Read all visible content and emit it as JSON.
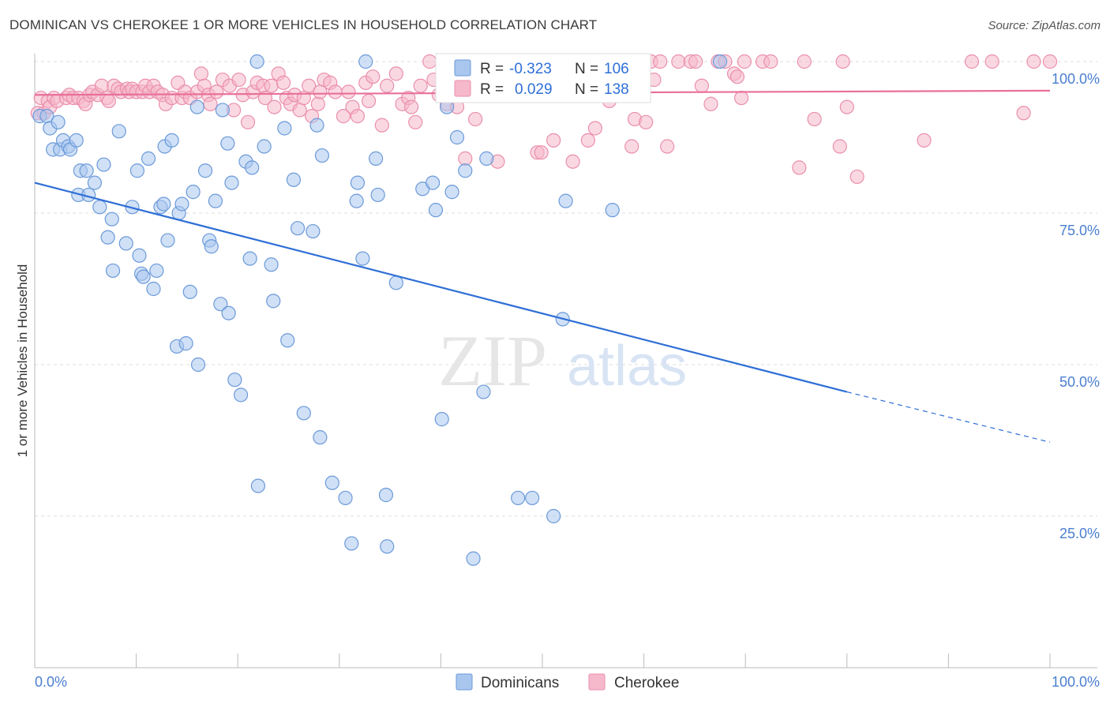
{
  "title": "DOMINICAN VS CHEROKEE 1 OR MORE VEHICLES IN HOUSEHOLD CORRELATION CHART",
  "source": "Source: ZipAtlas.com",
  "watermark": {
    "zip": "ZIP",
    "atlas": "atlas"
  },
  "colors": {
    "dominican_fill": "#a9c6ee",
    "dominican_stroke": "#6b9ad9",
    "dominican_line": "#2f6fd6",
    "cherokee_fill": "#f6b8cb",
    "cherokee_stroke": "#ea8fac",
    "cherokee_line": "#e8709a",
    "tick_text": "#4a7fd0",
    "grid": "#dddddd"
  },
  "legend": {
    "r_label": "R =",
    "n_label": "N =",
    "rows": [
      {
        "r": "-0.323",
        "n": "106"
      },
      {
        "r": "0.029",
        "n": "138"
      }
    ]
  },
  "bottom_legend": [
    "Dominicans",
    "Cherokee"
  ],
  "chart_data": {
    "type": "scatter",
    "title": "DOMINICAN VS CHEROKEE 1 OR MORE VEHICLES IN HOUSEHOLD CORRELATION CHART",
    "xlabel": "",
    "ylabel": "1 or more Vehicles in Household",
    "xlim": [
      0,
      100
    ],
    "ylim": [
      0,
      100
    ],
    "x_tick_labels": [
      "0.0%",
      "100.0%"
    ],
    "y_ticks": [
      {
        "value": 25,
        "label": "25.0%"
      },
      {
        "value": 50,
        "label": "50.0%"
      },
      {
        "value": 75,
        "label": "75.0%"
      },
      {
        "value": 100,
        "label": "100.0%"
      }
    ],
    "grid": true,
    "legend_position": "top-center",
    "series": [
      {
        "name": "Dominicans",
        "trend": {
          "x0": 0,
          "y0": 80.0,
          "x1": 80,
          "y1": 45.5,
          "dashed_to_x": 100,
          "dashed_to_y": 37.2
        },
        "points": [
          [
            0.5,
            91
          ],
          [
            1.2,
            91
          ],
          [
            1.5,
            89
          ],
          [
            1.8,
            85.5
          ],
          [
            2.3,
            90
          ],
          [
            2.5,
            85.5
          ],
          [
            2.8,
            87
          ],
          [
            3.3,
            86
          ],
          [
            3.5,
            85.5
          ],
          [
            4.1,
            87
          ],
          [
            4.3,
            78
          ],
          [
            4.5,
            82
          ],
          [
            5.1,
            82
          ],
          [
            5.3,
            78
          ],
          [
            5.9,
            80
          ],
          [
            6.4,
            76
          ],
          [
            6.8,
            83
          ],
          [
            7.2,
            71
          ],
          [
            7.6,
            74
          ],
          [
            7.7,
            65.5
          ],
          [
            8.3,
            88.5
          ],
          [
            9.0,
            70
          ],
          [
            9.6,
            76
          ],
          [
            10.1,
            82
          ],
          [
            10.3,
            68
          ],
          [
            10.5,
            65
          ],
          [
            10.7,
            64.5
          ],
          [
            11.2,
            84
          ],
          [
            11.7,
            62.5
          ],
          [
            12.0,
            65.5
          ],
          [
            12.4,
            76
          ],
          [
            12.7,
            76.5
          ],
          [
            12.8,
            86
          ],
          [
            13.1,
            70.5
          ],
          [
            13.5,
            87
          ],
          [
            14.0,
            53
          ],
          [
            14.2,
            75
          ],
          [
            14.5,
            76.5
          ],
          [
            14.9,
            53.5
          ],
          [
            15.3,
            62
          ],
          [
            15.6,
            78.5
          ],
          [
            16.0,
            92.5
          ],
          [
            16.1,
            50
          ],
          [
            16.8,
            82
          ],
          [
            17.2,
            70.5
          ],
          [
            17.4,
            69.5
          ],
          [
            17.8,
            77
          ],
          [
            18.3,
            60
          ],
          [
            18.5,
            92
          ],
          [
            19.0,
            86.5
          ],
          [
            19.1,
            58.5
          ],
          [
            19.4,
            80
          ],
          [
            19.7,
            47.5
          ],
          [
            20.3,
            45
          ],
          [
            20.8,
            83.5
          ],
          [
            21.2,
            67.5
          ],
          [
            21.4,
            82.5
          ],
          [
            21.9,
            100
          ],
          [
            22.0,
            30
          ],
          [
            22.6,
            86
          ],
          [
            23.3,
            66.5
          ],
          [
            23.5,
            60.5
          ],
          [
            24.6,
            89
          ],
          [
            24.9,
            54
          ],
          [
            25.5,
            80.5
          ],
          [
            25.9,
            72.5
          ],
          [
            26.5,
            42
          ],
          [
            27.4,
            72
          ],
          [
            27.8,
            89.5
          ],
          [
            28.1,
            38
          ],
          [
            28.3,
            84.5
          ],
          [
            29.3,
            30.5
          ],
          [
            30.6,
            28
          ],
          [
            31.2,
            20.5
          ],
          [
            31.7,
            77
          ],
          [
            31.8,
            80
          ],
          [
            32.3,
            67.5
          ],
          [
            32.6,
            100
          ],
          [
            33.6,
            84
          ],
          [
            33.8,
            78
          ],
          [
            34.6,
            28.5
          ],
          [
            34.7,
            20
          ],
          [
            35.6,
            63.5
          ],
          [
            38.2,
            79
          ],
          [
            39.2,
            80
          ],
          [
            39.5,
            75.5
          ],
          [
            40.1,
            41
          ],
          [
            40.6,
            92.5
          ],
          [
            41.1,
            78.5
          ],
          [
            41.6,
            87.5
          ],
          [
            42.4,
            82
          ],
          [
            43.2,
            18
          ],
          [
            44.2,
            45.5
          ],
          [
            44.5,
            84
          ],
          [
            47.6,
            28
          ],
          [
            49.0,
            28
          ],
          [
            51.1,
            25
          ],
          [
            52.0,
            57.5
          ],
          [
            52.3,
            77
          ],
          [
            56.9,
            75.5
          ],
          [
            67.5,
            100
          ]
        ]
      },
      {
        "name": "Cherokee",
        "trend": {
          "x0": 0,
          "y0": 94.5,
          "x1": 100,
          "y1": 95.2
        },
        "points": [
          [
            0.3,
            91.5
          ],
          [
            0.6,
            94
          ],
          [
            0.9,
            91.5
          ],
          [
            1.3,
            93.5
          ],
          [
            1.5,
            92.5
          ],
          [
            1.9,
            94
          ],
          [
            2.2,
            93.5
          ],
          [
            3.1,
            94
          ],
          [
            3.4,
            94.5
          ],
          [
            3.8,
            94
          ],
          [
            4.3,
            94
          ],
          [
            4.8,
            93.5
          ],
          [
            5.0,
            93
          ],
          [
            5.4,
            94.5
          ],
          [
            5.7,
            95
          ],
          [
            6.2,
            94.5
          ],
          [
            6.6,
            96
          ],
          [
            7.1,
            94
          ],
          [
            7.3,
            93.5
          ],
          [
            7.8,
            96
          ],
          [
            8.2,
            95.5
          ],
          [
            8.5,
            95
          ],
          [
            9.1,
            95.5
          ],
          [
            9.3,
            95
          ],
          [
            9.6,
            95.5
          ],
          [
            10.0,
            95
          ],
          [
            10.6,
            95
          ],
          [
            10.9,
            96
          ],
          [
            11.3,
            95
          ],
          [
            11.7,
            96
          ],
          [
            12.1,
            95
          ],
          [
            12.6,
            94.5
          ],
          [
            12.9,
            93
          ],
          [
            13.5,
            94
          ],
          [
            14.1,
            96.5
          ],
          [
            14.5,
            94
          ],
          [
            14.8,
            95
          ],
          [
            15.3,
            94
          ],
          [
            16.0,
            95
          ],
          [
            16.4,
            98
          ],
          [
            16.7,
            96
          ],
          [
            17.1,
            94.5
          ],
          [
            17.3,
            93
          ],
          [
            17.9,
            95
          ],
          [
            18.5,
            97
          ],
          [
            19.2,
            96
          ],
          [
            19.6,
            92
          ],
          [
            20.1,
            97
          ],
          [
            20.5,
            94.5
          ],
          [
            21.0,
            90
          ],
          [
            21.5,
            95
          ],
          [
            21.9,
            96.5
          ],
          [
            22.5,
            96
          ],
          [
            22.7,
            94
          ],
          [
            23.3,
            96
          ],
          [
            23.6,
            92.5
          ],
          [
            24.0,
            98
          ],
          [
            24.5,
            96.5
          ],
          [
            24.8,
            94
          ],
          [
            25.2,
            93
          ],
          [
            25.6,
            94.5
          ],
          [
            26.1,
            92
          ],
          [
            26.5,
            94
          ],
          [
            27.0,
            96
          ],
          [
            27.3,
            91
          ],
          [
            27.9,
            93
          ],
          [
            28.1,
            95
          ],
          [
            28.5,
            97
          ],
          [
            29.1,
            96.5
          ],
          [
            29.6,
            95
          ],
          [
            30.4,
            91
          ],
          [
            30.9,
            95
          ],
          [
            31.3,
            92.5
          ],
          [
            31.8,
            91
          ],
          [
            32.6,
            96.5
          ],
          [
            32.9,
            93.5
          ],
          [
            33.3,
            97.5
          ],
          [
            34.2,
            89.5
          ],
          [
            34.7,
            96
          ],
          [
            35.6,
            98
          ],
          [
            36.2,
            93
          ],
          [
            36.8,
            94
          ],
          [
            37.1,
            92.5
          ],
          [
            37.5,
            90
          ],
          [
            38.0,
            96
          ],
          [
            38.9,
            100
          ],
          [
            39.3,
            97
          ],
          [
            39.8,
            94.5
          ],
          [
            40.6,
            93
          ],
          [
            41.2,
            95
          ],
          [
            41.6,
            92.5
          ],
          [
            42.4,
            84
          ],
          [
            43.4,
            90.5
          ],
          [
            45.6,
            83.5
          ],
          [
            46.8,
            100
          ],
          [
            47.2,
            98
          ],
          [
            48.0,
            96.5
          ],
          [
            48.5,
            100
          ],
          [
            49.5,
            85
          ],
          [
            49.9,
            85
          ],
          [
            51.1,
            87
          ],
          [
            52.0,
            96
          ],
          [
            52.4,
            96.5
          ],
          [
            53.0,
            83.5
          ],
          [
            54.5,
            87
          ],
          [
            55.2,
            89
          ],
          [
            56.6,
            93.5
          ],
          [
            58.8,
            86
          ],
          [
            59.1,
            90.5
          ],
          [
            60.2,
            90
          ],
          [
            60.7,
            100
          ],
          [
            61.0,
            97
          ],
          [
            61.6,
            100
          ],
          [
            62.3,
            86
          ],
          [
            63.4,
            100
          ],
          [
            64.6,
            100
          ],
          [
            65.1,
            100
          ],
          [
            65.7,
            96
          ],
          [
            66.6,
            93
          ],
          [
            67.3,
            100
          ],
          [
            68.0,
            100
          ],
          [
            68.9,
            98
          ],
          [
            69.2,
            97.5
          ],
          [
            69.6,
            94
          ],
          [
            69.9,
            100
          ],
          [
            71.7,
            100
          ],
          [
            72.5,
            100
          ],
          [
            75.3,
            82.5
          ],
          [
            75.8,
            100
          ],
          [
            76.8,
            90.5
          ],
          [
            79.3,
            86
          ],
          [
            79.6,
            100
          ],
          [
            80.0,
            92.5
          ],
          [
            81.0,
            81
          ],
          [
            87.6,
            87
          ],
          [
            92.3,
            100
          ],
          [
            94.3,
            100
          ],
          [
            97.4,
            91.5
          ],
          [
            98.4,
            100
          ],
          [
            100,
            100
          ]
        ]
      }
    ]
  }
}
